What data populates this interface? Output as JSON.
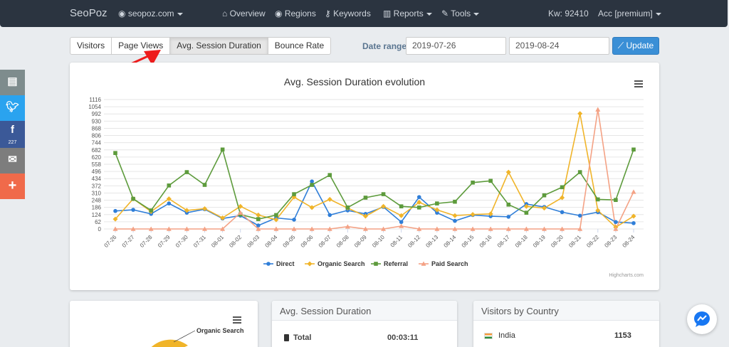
{
  "navbar": {
    "brand": "SeoPoz",
    "site": "seopoz.com",
    "overview": "Overview",
    "regions": "Regions",
    "keywords": "Keywords",
    "reports": "Reports",
    "tools": "Tools",
    "kw": "Kw: 92410",
    "account": "Acc [premium]"
  },
  "tabs": [
    "Visitors",
    "Page Views",
    "Avg. Session Duration",
    "Bounce Rate"
  ],
  "active_tab": "Avg. Session Duration",
  "date_range": {
    "label": "Date range",
    "start": "2019-07-26",
    "end": "2019-08-24",
    "update_label": "Update"
  },
  "social": {
    "share_count": "227"
  },
  "chart_data": {
    "type": "line",
    "title": "Avg. Session Duration evolution",
    "credit": "Highcharts.com",
    "categories": [
      "07-26",
      "07-27",
      "07-28",
      "07-29",
      "07-30",
      "07-31",
      "08-01",
      "08-02",
      "08-03",
      "08-04",
      "08-05",
      "08-06",
      "08-07",
      "08-08",
      "08-09",
      "08-10",
      "08-11",
      "08-12",
      "08-13",
      "08-14",
      "08-15",
      "08-16",
      "08-17",
      "08-18",
      "08-19",
      "08-20",
      "08-21",
      "08-22",
      "08-23",
      "08-24"
    ],
    "y_ticks": [
      0,
      62,
      124,
      186,
      248,
      310,
      372,
      434,
      496,
      558,
      620,
      682,
      744,
      806,
      868,
      930,
      992,
      1054,
      1116
    ],
    "ylim": [
      0,
      1116
    ],
    "legend_position": "bottom",
    "series": [
      {
        "name": "Direct",
        "color": "#2f7ed8",
        "marker": "circle",
        "values": [
          155,
          165,
          130,
          220,
          140,
          170,
          90,
          115,
          30,
          95,
          80,
          410,
          120,
          160,
          130,
          190,
          60,
          275,
          140,
          70,
          120,
          110,
          105,
          215,
          190,
          145,
          115,
          145,
          60,
          50
        ]
      },
      {
        "name": "Organic Search",
        "color": "#f0b429",
        "marker": "diamond",
        "values": [
          85,
          260,
          150,
          260,
          160,
          175,
          95,
          195,
          120,
          80,
          275,
          185,
          255,
          180,
          110,
          195,
          115,
          230,
          165,
          115,
          125,
          130,
          490,
          195,
          180,
          270,
          995,
          160,
          15,
          110
        ]
      },
      {
        "name": "Referral",
        "color": "#5d9b3c",
        "marker": "square",
        "values": [
          655,
          260,
          160,
          375,
          490,
          380,
          685,
          125,
          85,
          120,
          300,
          380,
          465,
          185,
          270,
          300,
          195,
          185,
          220,
          235,
          400,
          415,
          210,
          140,
          290,
          360,
          490,
          255,
          250,
          685
        ]
      },
      {
        "name": "Paid Search",
        "color": "#f4a285",
        "marker": "triangle",
        "values": [
          0,
          0,
          0,
          0,
          0,
          0,
          0,
          140,
          0,
          0,
          0,
          0,
          0,
          20,
          0,
          0,
          25,
          0,
          0,
          0,
          0,
          0,
          0,
          0,
          0,
          0,
          0,
          1030,
          0,
          320
        ]
      }
    ]
  },
  "pie_card": {
    "label_organic": "Organic Search"
  },
  "duration_card": {
    "title": "Avg. Session Duration",
    "total_label": "Total",
    "total_value": "00:03:11"
  },
  "country_card": {
    "title": "Visitors by Country",
    "country": "India",
    "value": "1153"
  },
  "colors": {
    "navbar": "#2b3440",
    "print": "#7e8c8d",
    "twitter": "#2aa3ef",
    "facebook": "#3b5998",
    "email": "#7d7d7d",
    "more": "#f06a4a",
    "accent": "#3a8fd6"
  }
}
